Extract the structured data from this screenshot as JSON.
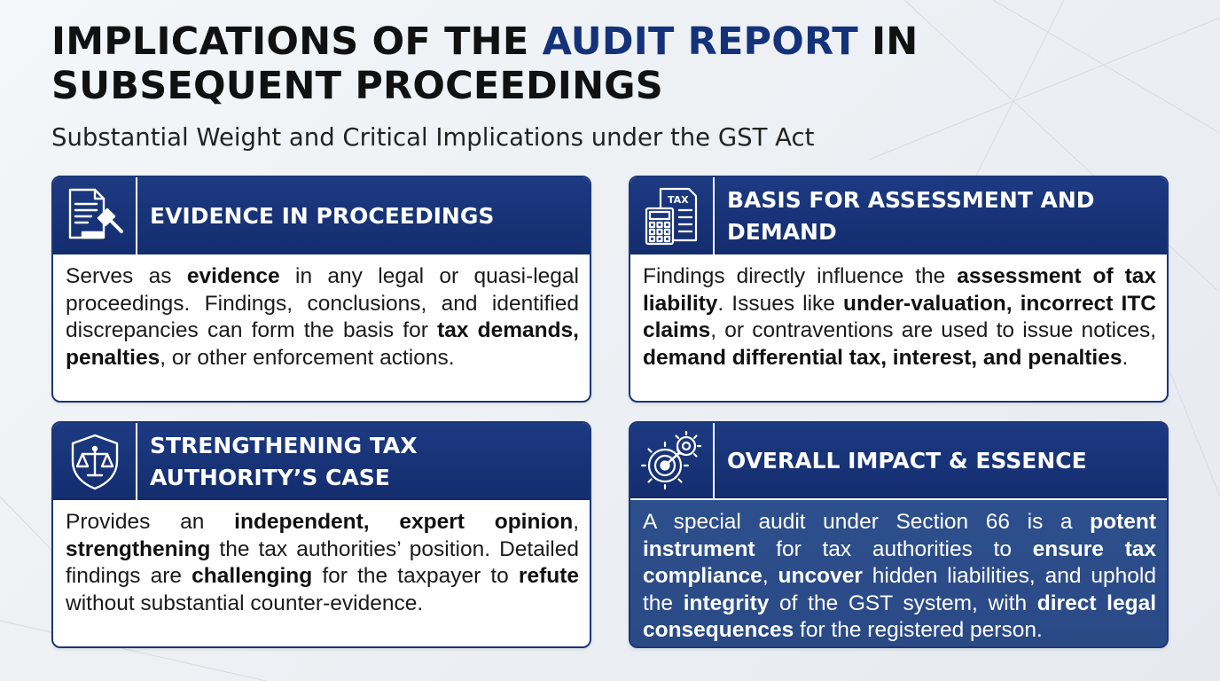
{
  "header": {
    "title_pre": "IMPLICATIONS OF THE ",
    "title_accent": "AUDIT REPORT",
    "title_post": " IN SUBSEQUENT PROCEEDINGS",
    "subtitle": "Substantial Weight and Critical Implications under the GST Act"
  },
  "cards": [
    {
      "icon": "document-gavel-icon",
      "title": "EVIDENCE IN PROCEEDINGS",
      "body": [
        {
          "t": "Serves as "
        },
        {
          "b": "evidence"
        },
        {
          "t": " in any legal or quasi-legal proceedings. Findings, conclusions, and identified discrepancies can form the basis for "
        },
        {
          "b": "tax demands, penalties"
        },
        {
          "t": ", or other enforcement actions."
        }
      ]
    },
    {
      "icon": "tax-calculator-icon",
      "icon_label": "TAX",
      "title": "BASIS FOR ASSESSMENT AND DEMAND",
      "body": [
        {
          "t": "Findings directly influence the "
        },
        {
          "b": "assessment of tax liability"
        },
        {
          "t": ". Issues like "
        },
        {
          "b": "under-valuation, incorrect ITC claims"
        },
        {
          "t": ", or contraventions are used to issue notices, "
        },
        {
          "b": "demand differential tax, interest, and penalties"
        },
        {
          "t": "."
        }
      ]
    },
    {
      "icon": "shield-scales-icon",
      "title": "STRENGTHENING TAX AUTHORITY’S CASE",
      "body": [
        {
          "t": "Provides an "
        },
        {
          "b": "independent, expert opinion"
        },
        {
          "t": ", "
        },
        {
          "b": "strengthening"
        },
        {
          "t": " the tax authorities’ position. Detailed findings are "
        },
        {
          "b": "challenging"
        },
        {
          "t": " for the taxpayer to "
        },
        {
          "b": "refute"
        },
        {
          "t": " without substantial counter-evidence."
        }
      ]
    },
    {
      "icon": "gears-target-icon",
      "title": "OVERALL IMPACT & ESSENCE",
      "body": [
        {
          "t": "A special audit under Section 66 is a "
        },
        {
          "b": "potent instrument"
        },
        {
          "t": " for tax authorities to "
        },
        {
          "b": "ensure tax compliance"
        },
        {
          "t": ", "
        },
        {
          "b": "uncover"
        },
        {
          "t": " hidden liabilities, and uphold the "
        },
        {
          "b": "integrity"
        },
        {
          "t": " of the GST system, with "
        },
        {
          "b": "direct legal consequences"
        },
        {
          "t": " for the registered person."
        }
      ]
    }
  ],
  "colors": {
    "accent": "#14327a",
    "card_header": "#1d3a82",
    "impact_card": "#2f5290"
  }
}
